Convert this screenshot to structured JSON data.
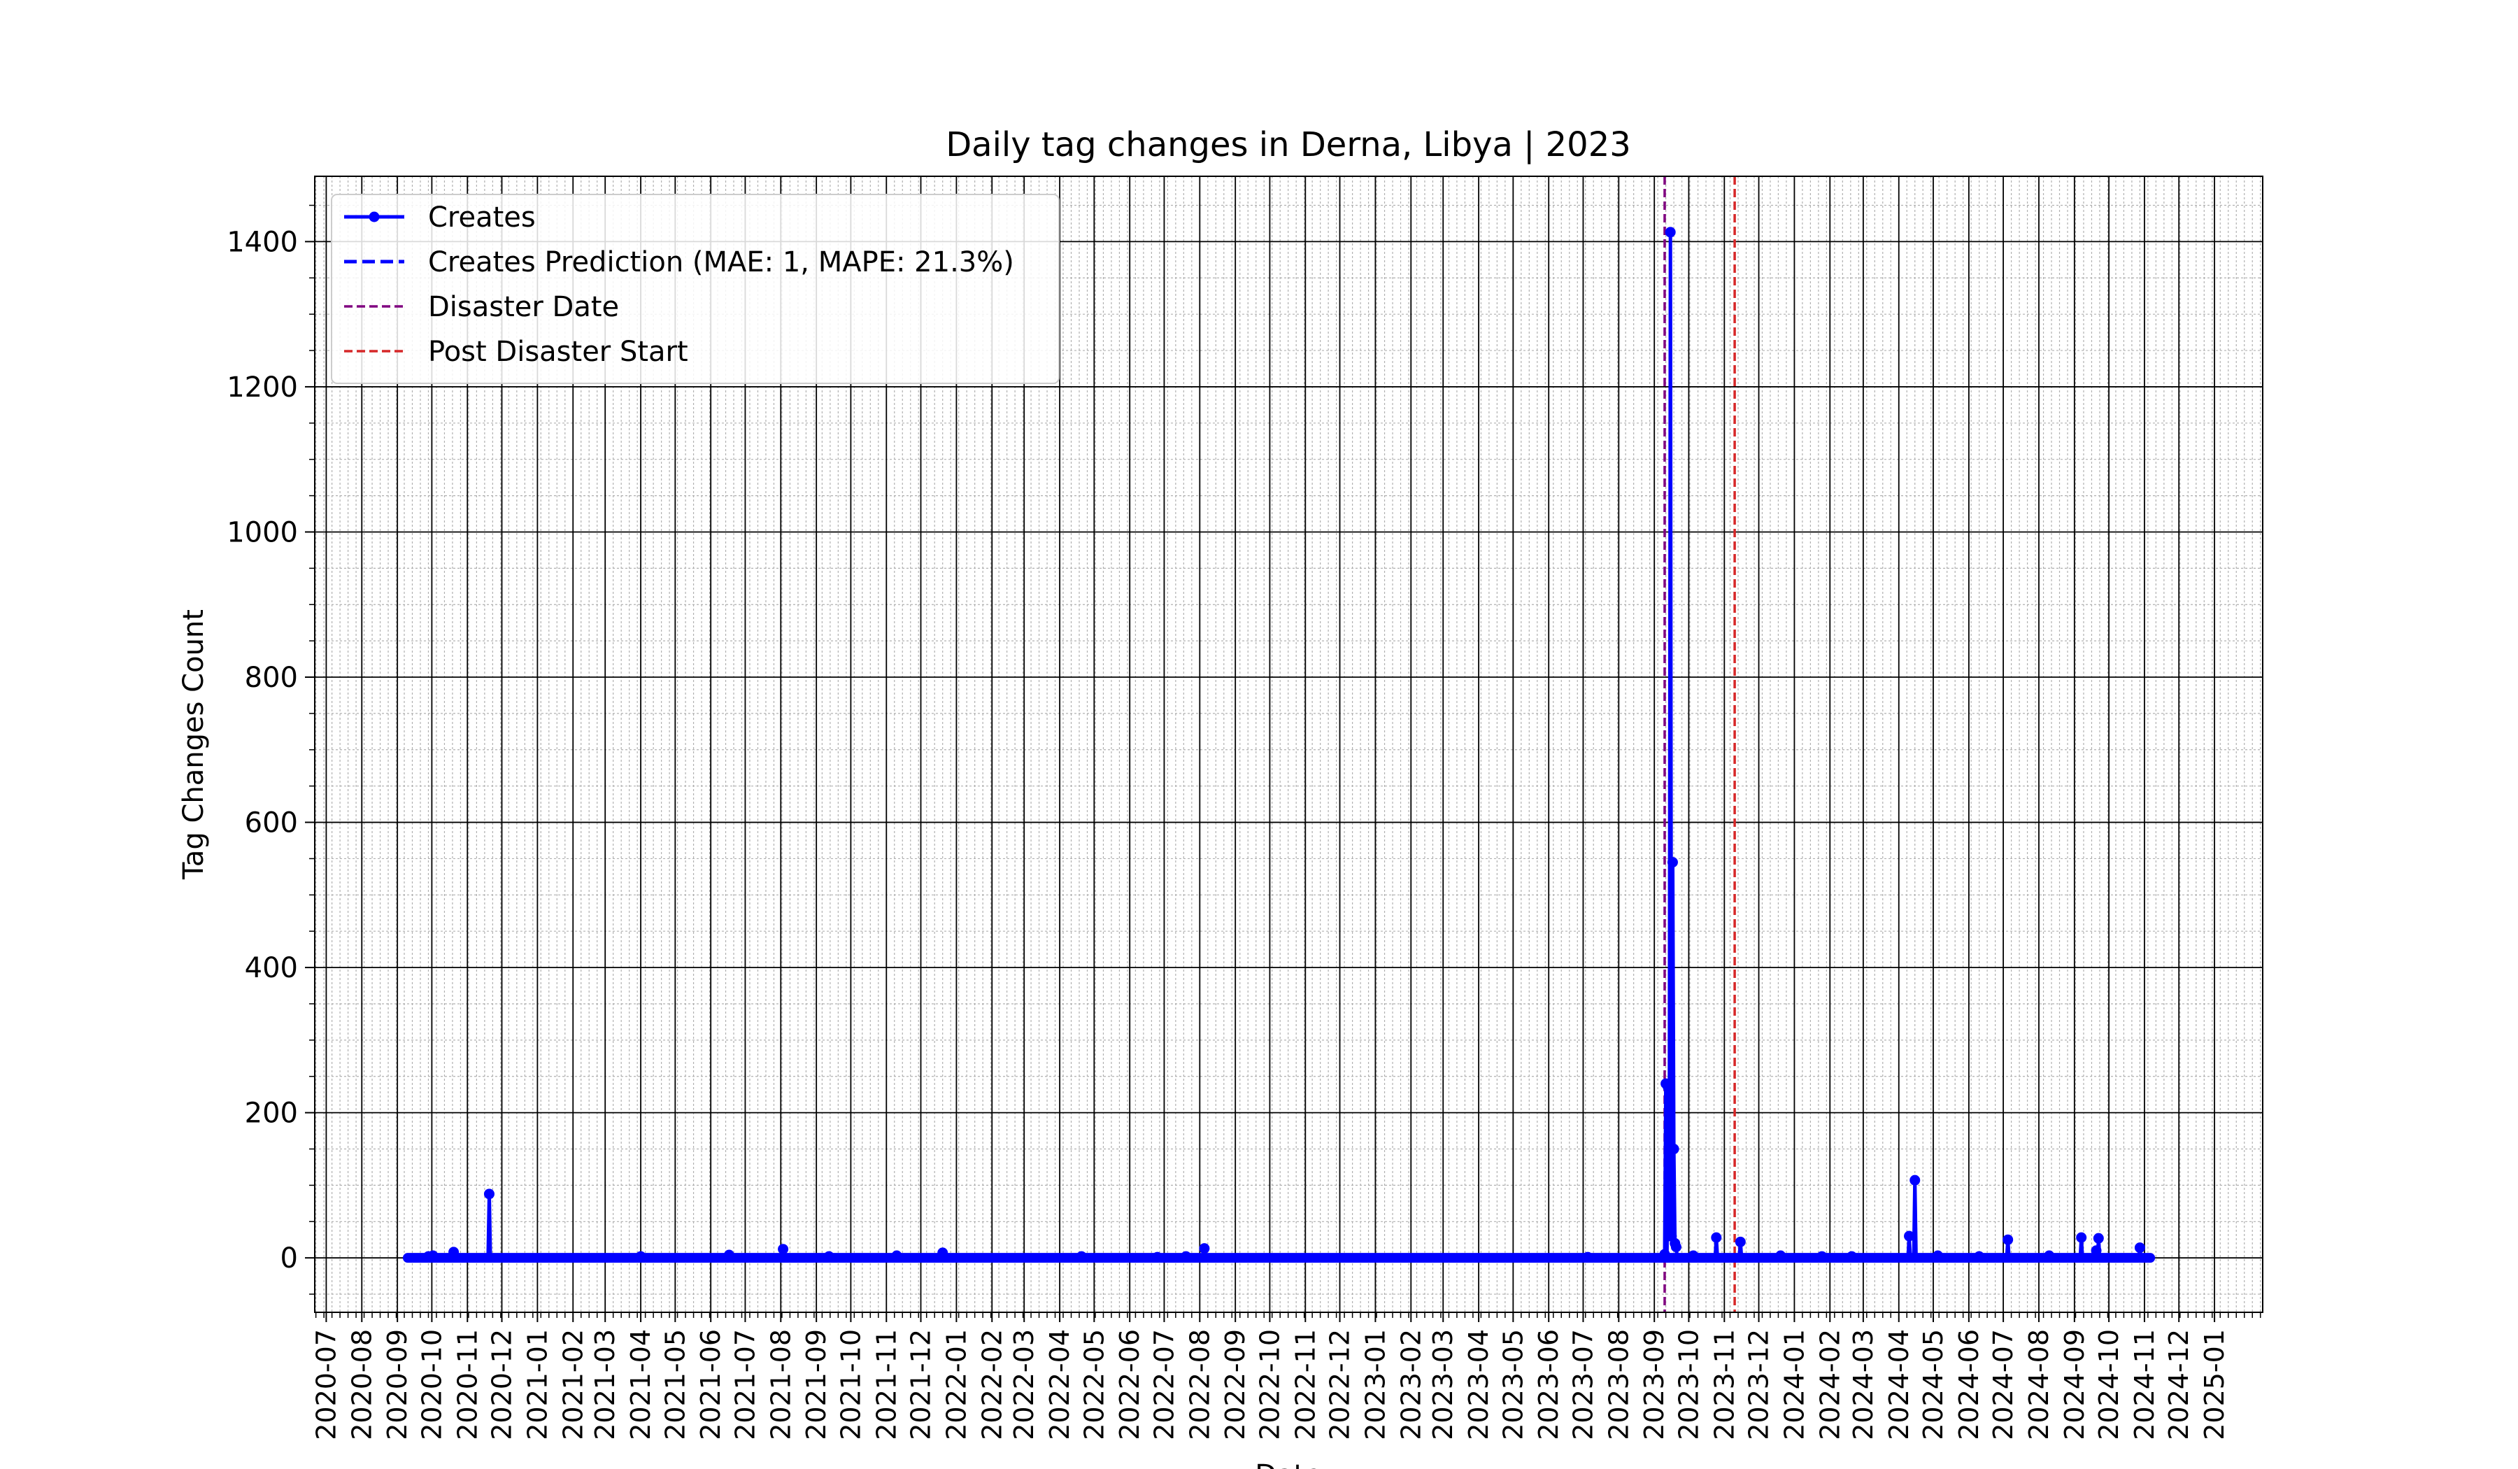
{
  "chart_data": {
    "type": "line",
    "title": "Daily tag changes in Derna, Libya | 2023",
    "xlabel": "Date",
    "ylabel": "Tag Changes Count",
    "ylim": [
      -75,
      1490
    ],
    "yticks": [
      0,
      200,
      400,
      600,
      800,
      1000,
      1200,
      1400
    ],
    "ytick_labels": [
      "0",
      "200",
      "400",
      "600",
      "800",
      "1000",
      "1200",
      "1400"
    ],
    "xlim": [
      "2020-06-21",
      "2025-02-12"
    ],
    "xticks": [
      "2020-07-01",
      "2020-08-01",
      "2020-09-01",
      "2020-10-01",
      "2020-11-01",
      "2020-12-01",
      "2021-01-01",
      "2021-02-01",
      "2021-03-01",
      "2021-04-01",
      "2021-05-01",
      "2021-06-01",
      "2021-07-01",
      "2021-08-01",
      "2021-09-01",
      "2021-10-01",
      "2021-11-01",
      "2021-12-01",
      "2022-01-01",
      "2022-02-01",
      "2022-03-01",
      "2022-04-01",
      "2022-05-01",
      "2022-06-01",
      "2022-07-01",
      "2022-08-01",
      "2022-09-01",
      "2022-10-01",
      "2022-11-01",
      "2022-12-01",
      "2023-01-01",
      "2023-02-01",
      "2023-03-01",
      "2023-04-01",
      "2023-05-01",
      "2023-06-01",
      "2023-07-01",
      "2023-08-01",
      "2023-09-01",
      "2023-10-01",
      "2023-11-01",
      "2023-12-01",
      "2024-01-01",
      "2024-02-01",
      "2024-03-01",
      "2024-04-01",
      "2024-05-01",
      "2024-06-01",
      "2024-07-01",
      "2024-08-01",
      "2024-09-01",
      "2024-10-01",
      "2024-11-01",
      "2024-12-01",
      "2025-01-01"
    ],
    "xtick_labels": [
      "2020-07",
      "2020-08",
      "2020-09",
      "2020-10",
      "2020-11",
      "2020-12",
      "2021-01",
      "2021-02",
      "2021-03",
      "2021-04",
      "2021-05",
      "2021-06",
      "2021-07",
      "2021-08",
      "2021-09",
      "2021-10",
      "2021-11",
      "2021-12",
      "2022-01",
      "2022-02",
      "2022-03",
      "2022-04",
      "2022-05",
      "2022-06",
      "2022-07",
      "2022-08",
      "2022-09",
      "2022-10",
      "2022-11",
      "2022-12",
      "2023-01",
      "2023-02",
      "2023-03",
      "2023-04",
      "2023-05",
      "2023-06",
      "2023-07",
      "2023-08",
      "2023-09",
      "2023-10",
      "2023-11",
      "2023-12",
      "2024-01",
      "2024-02",
      "2024-03",
      "2024-04",
      "2024-05",
      "2024-06",
      "2024-07",
      "2024-08",
      "2024-09",
      "2024-10",
      "2024-11",
      "2024-12",
      "2025-01"
    ],
    "grid": true,
    "legend_position": "top-left",
    "series": [
      {
        "name": "Creates",
        "color": "#0000ff",
        "style": "solid-with-markers",
        "start": "2020-09-10",
        "end": "2024-11-06",
        "baseline": 0,
        "points": [
          {
            "x": "2020-09-28",
            "y": 2
          },
          {
            "x": "2020-10-02",
            "y": 3
          },
          {
            "x": "2020-10-20",
            "y": 8
          },
          {
            "x": "2020-11-20",
            "y": 88
          },
          {
            "x": "2021-04-01",
            "y": 2
          },
          {
            "x": "2021-06-17",
            "y": 4
          },
          {
            "x": "2021-08-03",
            "y": 12
          },
          {
            "x": "2021-09-12",
            "y": 2
          },
          {
            "x": "2021-11-10",
            "y": 3
          },
          {
            "x": "2021-12-20",
            "y": 7
          },
          {
            "x": "2022-04-20",
            "y": 2
          },
          {
            "x": "2022-06-25",
            "y": 1
          },
          {
            "x": "2022-07-20",
            "y": 2
          },
          {
            "x": "2022-08-05",
            "y": 13
          },
          {
            "x": "2023-07-05",
            "y": 1
          },
          {
            "x": "2023-09-10",
            "y": 5
          },
          {
            "x": "2023-09-11",
            "y": 240
          },
          {
            "x": "2023-09-13",
            "y": 235
          },
          {
            "x": "2023-09-14",
            "y": 30
          },
          {
            "x": "2023-09-15",
            "y": 1413
          },
          {
            "x": "2023-09-16",
            "y": 30
          },
          {
            "x": "2023-09-17",
            "y": 545
          },
          {
            "x": "2023-09-18",
            "y": 150
          },
          {
            "x": "2023-09-19",
            "y": 20
          },
          {
            "x": "2023-09-20",
            "y": 15
          },
          {
            "x": "2023-10-05",
            "y": 3
          },
          {
            "x": "2023-10-25",
            "y": 28
          },
          {
            "x": "2023-11-15",
            "y": 22
          },
          {
            "x": "2023-12-20",
            "y": 3
          },
          {
            "x": "2024-01-25",
            "y": 2
          },
          {
            "x": "2024-02-20",
            "y": 2
          },
          {
            "x": "2024-04-10",
            "y": 30
          },
          {
            "x": "2024-04-15",
            "y": 107
          },
          {
            "x": "2024-05-05",
            "y": 3
          },
          {
            "x": "2024-06-10",
            "y": 2
          },
          {
            "x": "2024-07-05",
            "y": 25
          },
          {
            "x": "2024-08-10",
            "y": 3
          },
          {
            "x": "2024-09-07",
            "y": 28
          },
          {
            "x": "2024-09-20",
            "y": 10
          },
          {
            "x": "2024-09-22",
            "y": 27
          },
          {
            "x": "2024-10-28",
            "y": 14
          }
        ]
      },
      {
        "name": "Creates Prediction (MAE: 1, MAPE: 21.3%)",
        "color": "#0000ff",
        "style": "dashed",
        "start": "2023-10-25",
        "end": "2024-11-06",
        "value": 0
      }
    ],
    "vlines": [
      {
        "name": "Disaster Date",
        "x": "2023-09-10",
        "color": "#800080",
        "style": "dashed"
      },
      {
        "name": "Post Disaster Start",
        "x": "2023-11-10",
        "color": "#d62728",
        "style": "dashed"
      }
    ]
  }
}
